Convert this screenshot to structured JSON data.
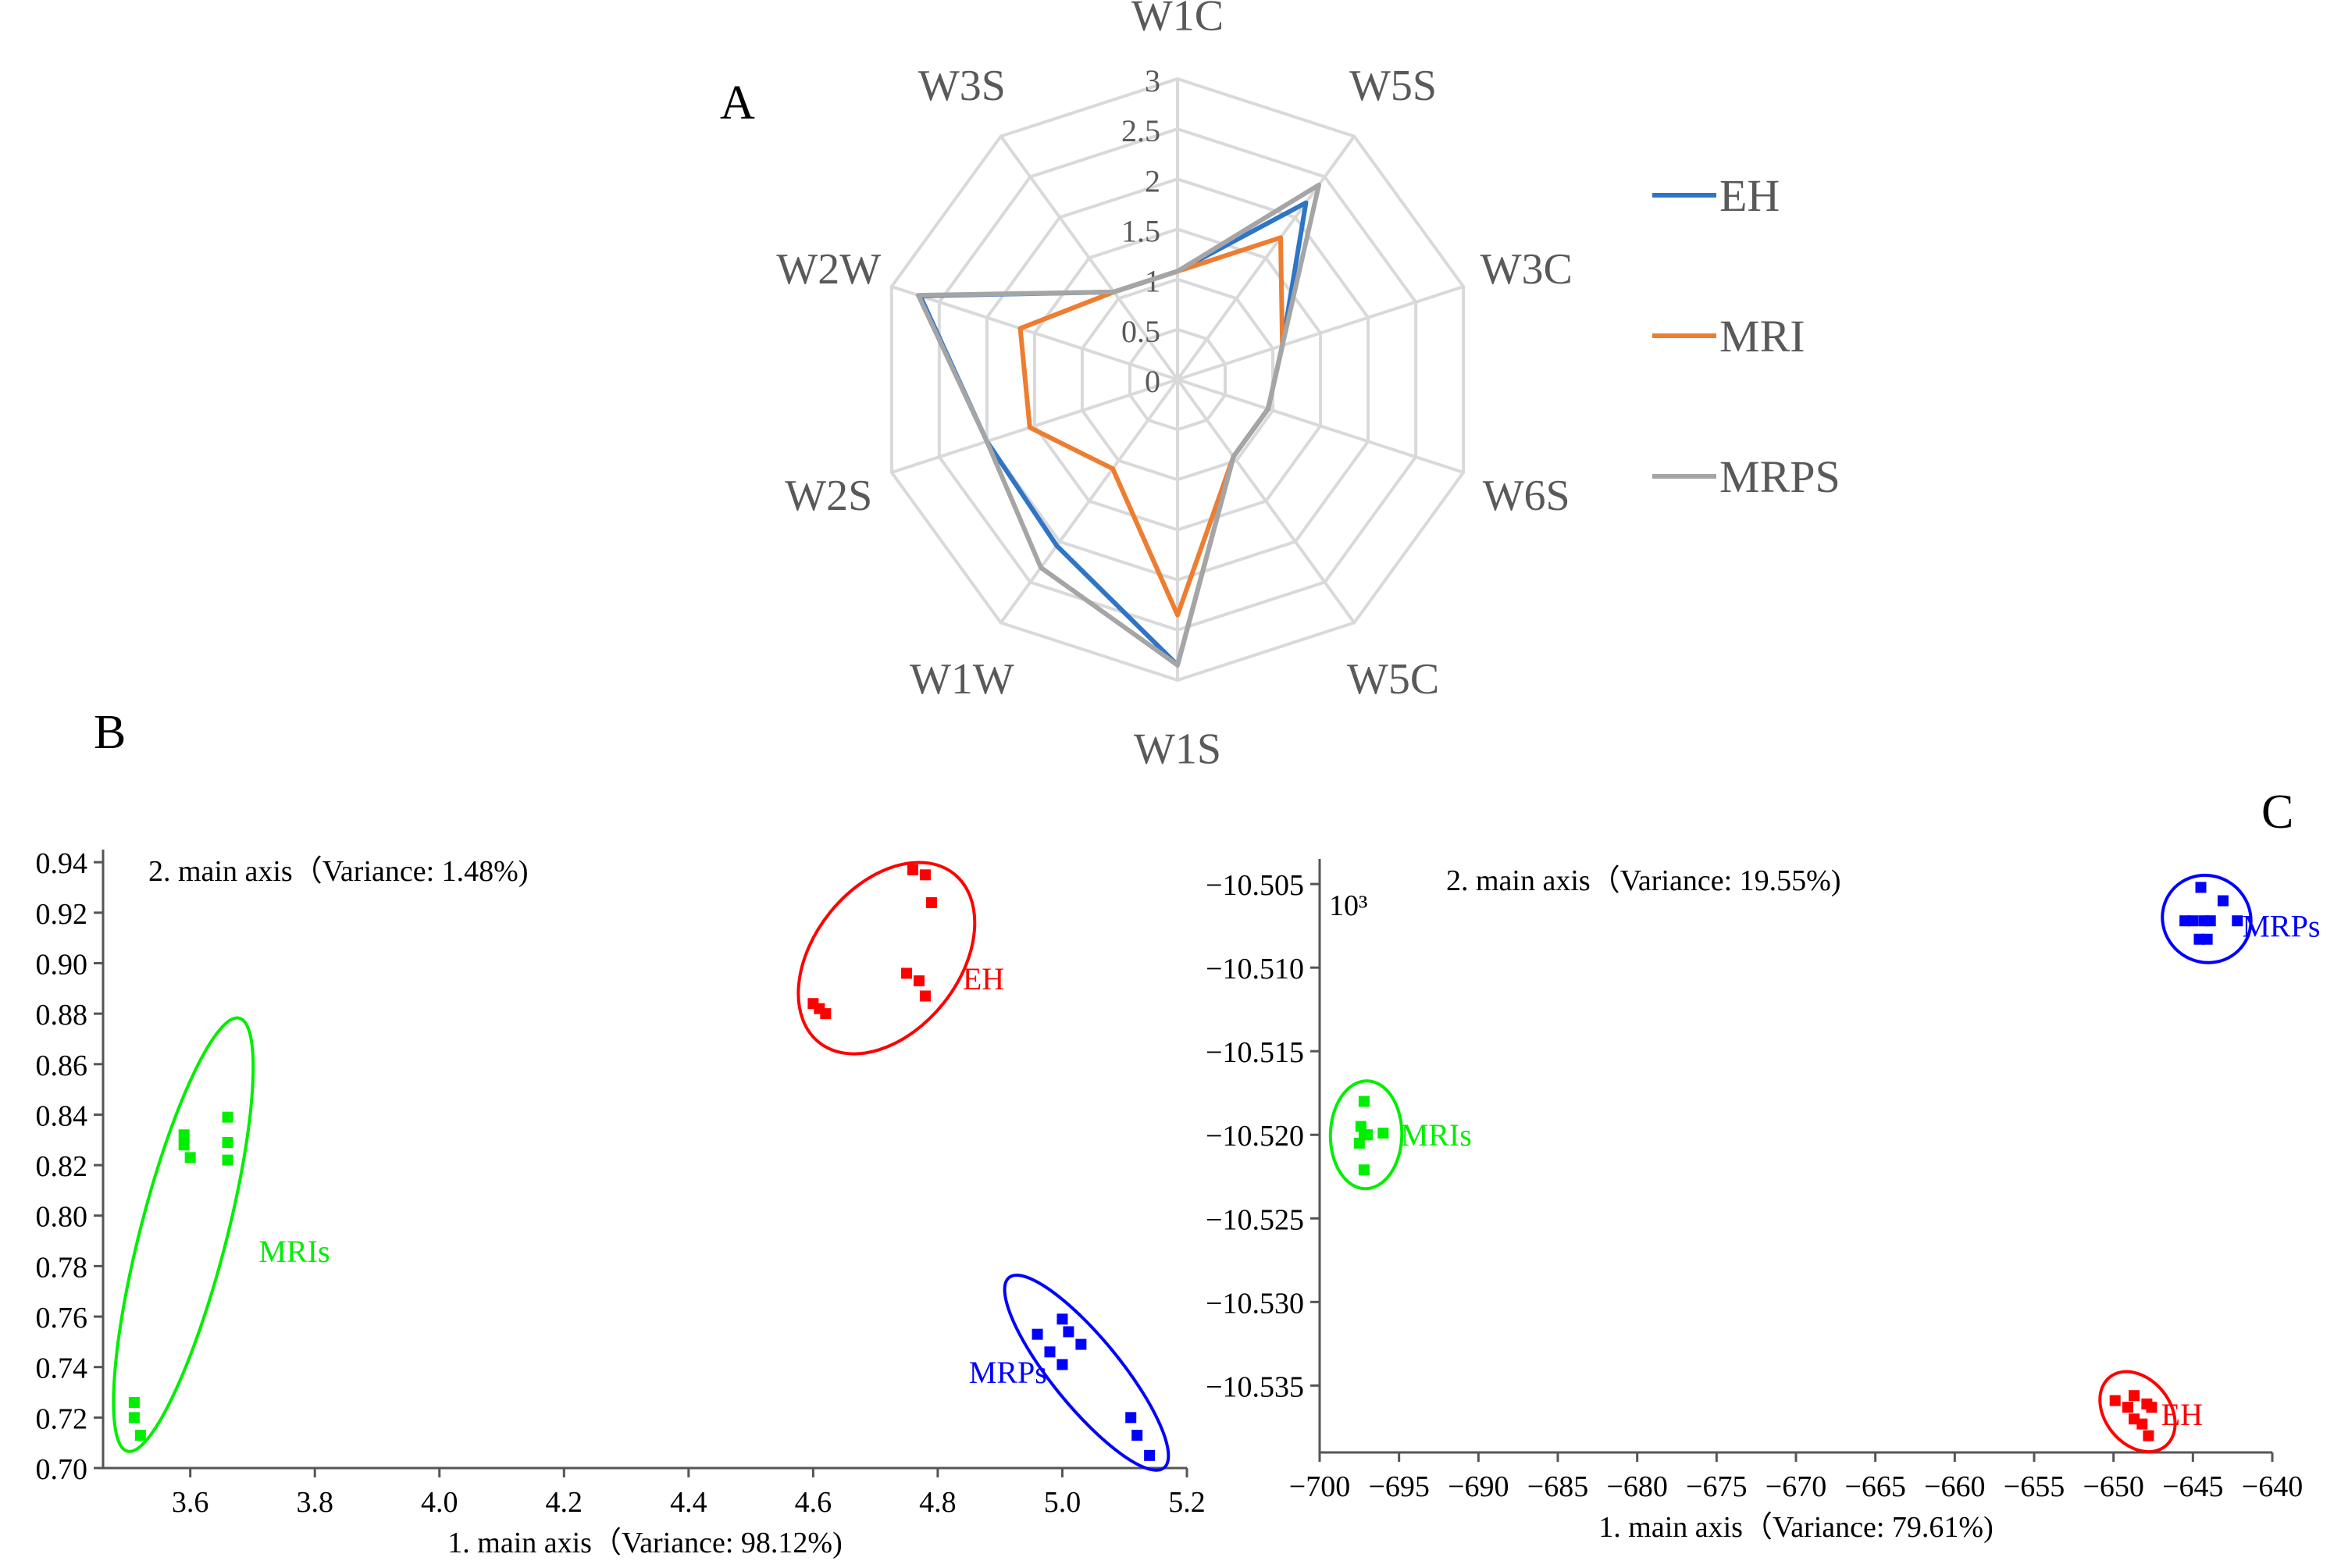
{
  "panels": {
    "a": "A",
    "b": "B",
    "c": "C"
  },
  "chart_data": [
    {
      "type": "radar",
      "panel": "A",
      "axes": [
        "W1C",
        "W5S",
        "W3C",
        "W6S",
        "W5C",
        "W1S",
        "W1W",
        "W2S",
        "W2W",
        "W3S"
      ],
      "rlim": [
        0,
        3
      ],
      "ticks": [
        0,
        0.5,
        1,
        1.5,
        2,
        2.5,
        3
      ],
      "tick_labels": [
        "0",
        "0.5",
        "1",
        "1.5",
        "2",
        "2.5",
        "3"
      ],
      "series": [
        {
          "name": "EH",
          "color": "#2e75c8",
          "values": [
            1.08,
            2.18,
            1.1,
            0.95,
            0.95,
            2.85,
            2.05,
            2.0,
            2.7,
            1.08
          ]
        },
        {
          "name": "MRI",
          "color": "#ed7d31",
          "values": [
            1.08,
            1.75,
            1.1,
            0.95,
            0.95,
            2.35,
            1.1,
            1.55,
            1.65,
            1.08
          ]
        },
        {
          "name": "MRPS",
          "color": "#a5a5a5",
          "values": [
            1.08,
            2.4,
            1.1,
            0.95,
            0.95,
            2.85,
            2.32,
            2.0,
            2.72,
            1.08
          ]
        }
      ]
    },
    {
      "type": "scatter",
      "panel": "B",
      "xlabel": "1. main axis（Variance:  98.12%)",
      "ylabel": "2. main axis（Variance:  1.48%)",
      "xlim": [
        3.46,
        5.2
      ],
      "ylim": [
        0.7,
        0.945
      ],
      "xticks": [
        3.6,
        3.8,
        4.0,
        4.2,
        4.4,
        4.6,
        4.8,
        5.0,
        5.2
      ],
      "xtick_labels": [
        "3.6",
        "3.8",
        "4.0",
        "4.2",
        "4.4",
        "4.6",
        "4.8",
        "5.0",
        "5.2"
      ],
      "yticks": [
        0.7,
        0.72,
        0.74,
        0.76,
        0.78,
        0.8,
        0.82,
        0.84,
        0.86,
        0.88,
        0.9,
        0.92,
        0.94
      ],
      "ytick_labels": [
        "0.70",
        "0.72",
        "0.74",
        "0.76",
        "0.78",
        "0.80",
        "0.82",
        "0.84",
        "0.86",
        "0.88",
        "0.90",
        "0.92",
        "0.94"
      ],
      "groups": [
        {
          "name": "EH",
          "color": "#ff0000",
          "points": [
            [
              4.76,
              0.937
            ],
            [
              4.78,
              0.935
            ],
            [
              4.79,
              0.924
            ],
            [
              4.6,
              0.884
            ],
            [
              4.61,
              0.882
            ],
            [
              4.62,
              0.88
            ],
            [
              4.75,
              0.896
            ],
            [
              4.77,
              0.893
            ],
            [
              4.78,
              0.887
            ]
          ],
          "ellipse": {
            "cx": 4.71,
            "cy": 0.9,
            "rx_points": [
              4.57,
              4.85
            ],
            "angle": "tilted"
          },
          "label_at": [
            4.84,
            0.894
          ]
        },
        {
          "name": "MRIs",
          "color": "#00ee00",
          "points": [
            [
              3.59,
              0.832
            ],
            [
              3.59,
              0.828
            ],
            [
              3.6,
              0.823
            ],
            [
              3.66,
              0.839
            ],
            [
              3.66,
              0.829
            ],
            [
              3.66,
              0.822
            ],
            [
              3.51,
              0.726
            ],
            [
              3.51,
              0.72
            ],
            [
              3.52,
              0.713
            ]
          ],
          "label_at": [
            3.71,
            0.786
          ]
        },
        {
          "name": "MRPs",
          "color": "#0000ff",
          "points": [
            [
              5.0,
              0.759
            ],
            [
              5.01,
              0.754
            ],
            [
              4.96,
              0.753
            ],
            [
              5.03,
              0.749
            ],
            [
              4.98,
              0.746
            ],
            [
              5.0,
              0.741
            ],
            [
              5.11,
              0.72
            ],
            [
              5.12,
              0.713
            ],
            [
              5.14,
              0.705
            ]
          ],
          "label_at": [
            4.85,
            0.738
          ]
        }
      ]
    },
    {
      "type": "scatter",
      "panel": "C",
      "xlabel": "1. main axis（Variance: 79.61%)",
      "ylabel": "2. main axis（Variance:  19.55%)",
      "multiplier": "10³",
      "xlim": [
        -700,
        -640
      ],
      "ylim": [
        -10.539,
        -10.5035
      ],
      "xticks": [
        -700,
        -695,
        -690,
        -685,
        -680,
        -675,
        -670,
        -665,
        -660,
        -655,
        -650,
        -645,
        -640
      ],
      "xtick_labels": [
        "−700",
        "−695",
        "−690",
        "−685",
        "−680",
        "−675",
        "−670",
        "−665",
        "−660",
        "−655",
        "−650",
        "−645",
        "−640"
      ],
      "yticks": [
        -10.505,
        -10.51,
        -10.515,
        -10.52,
        -10.525,
        -10.53,
        -10.535
      ],
      "ytick_labels": [
        "−10.505",
        "−10.510",
        "−10.515",
        "−10.520",
        "−10.525",
        "−10.530",
        "−10.535"
      ],
      "groups": [
        {
          "name": "MRPs",
          "color": "#0000ff",
          "points": [
            [
              -644.5,
              -10.5052
            ],
            [
              -643.1,
              -10.506
            ],
            [
              -645.5,
              -10.5072
            ],
            [
              -645.0,
              -10.5072
            ],
            [
              -644.3,
              -10.5072
            ],
            [
              -643.9,
              -10.5072
            ],
            [
              -642.2,
              -10.5072
            ],
            [
              -644.6,
              -10.5083
            ],
            [
              -644.1,
              -10.5083
            ]
          ],
          "label_at": [
            -641.9,
            -10.5075
          ]
        },
        {
          "name": "MRIs",
          "color": "#00ee00",
          "points": [
            [
              -697.2,
              -10.518
            ],
            [
              -697.4,
              -10.5195
            ],
            [
              -697.2,
              -10.52
            ],
            [
              -697.5,
              -10.5205
            ],
            [
              -697.0,
              -10.52
            ],
            [
              -696.0,
              -10.5199
            ],
            [
              -697.2,
              -10.5221
            ]
          ],
          "label_at": [
            -694.9,
            -10.52
          ]
        },
        {
          "name": "EH",
          "color": "#ff0000",
          "points": [
            [
              -649.9,
              -10.5359
            ],
            [
              -648.7,
              -10.5356
            ],
            [
              -647.9,
              -10.5361
            ],
            [
              -647.6,
              -10.5363
            ],
            [
              -649.1,
              -10.5363
            ],
            [
              -648.7,
              -10.537
            ],
            [
              -648.2,
              -10.5373
            ],
            [
              -647.8,
              -10.538
            ]
          ],
          "label_at": [
            -647.0,
            -10.5367
          ]
        }
      ]
    }
  ]
}
